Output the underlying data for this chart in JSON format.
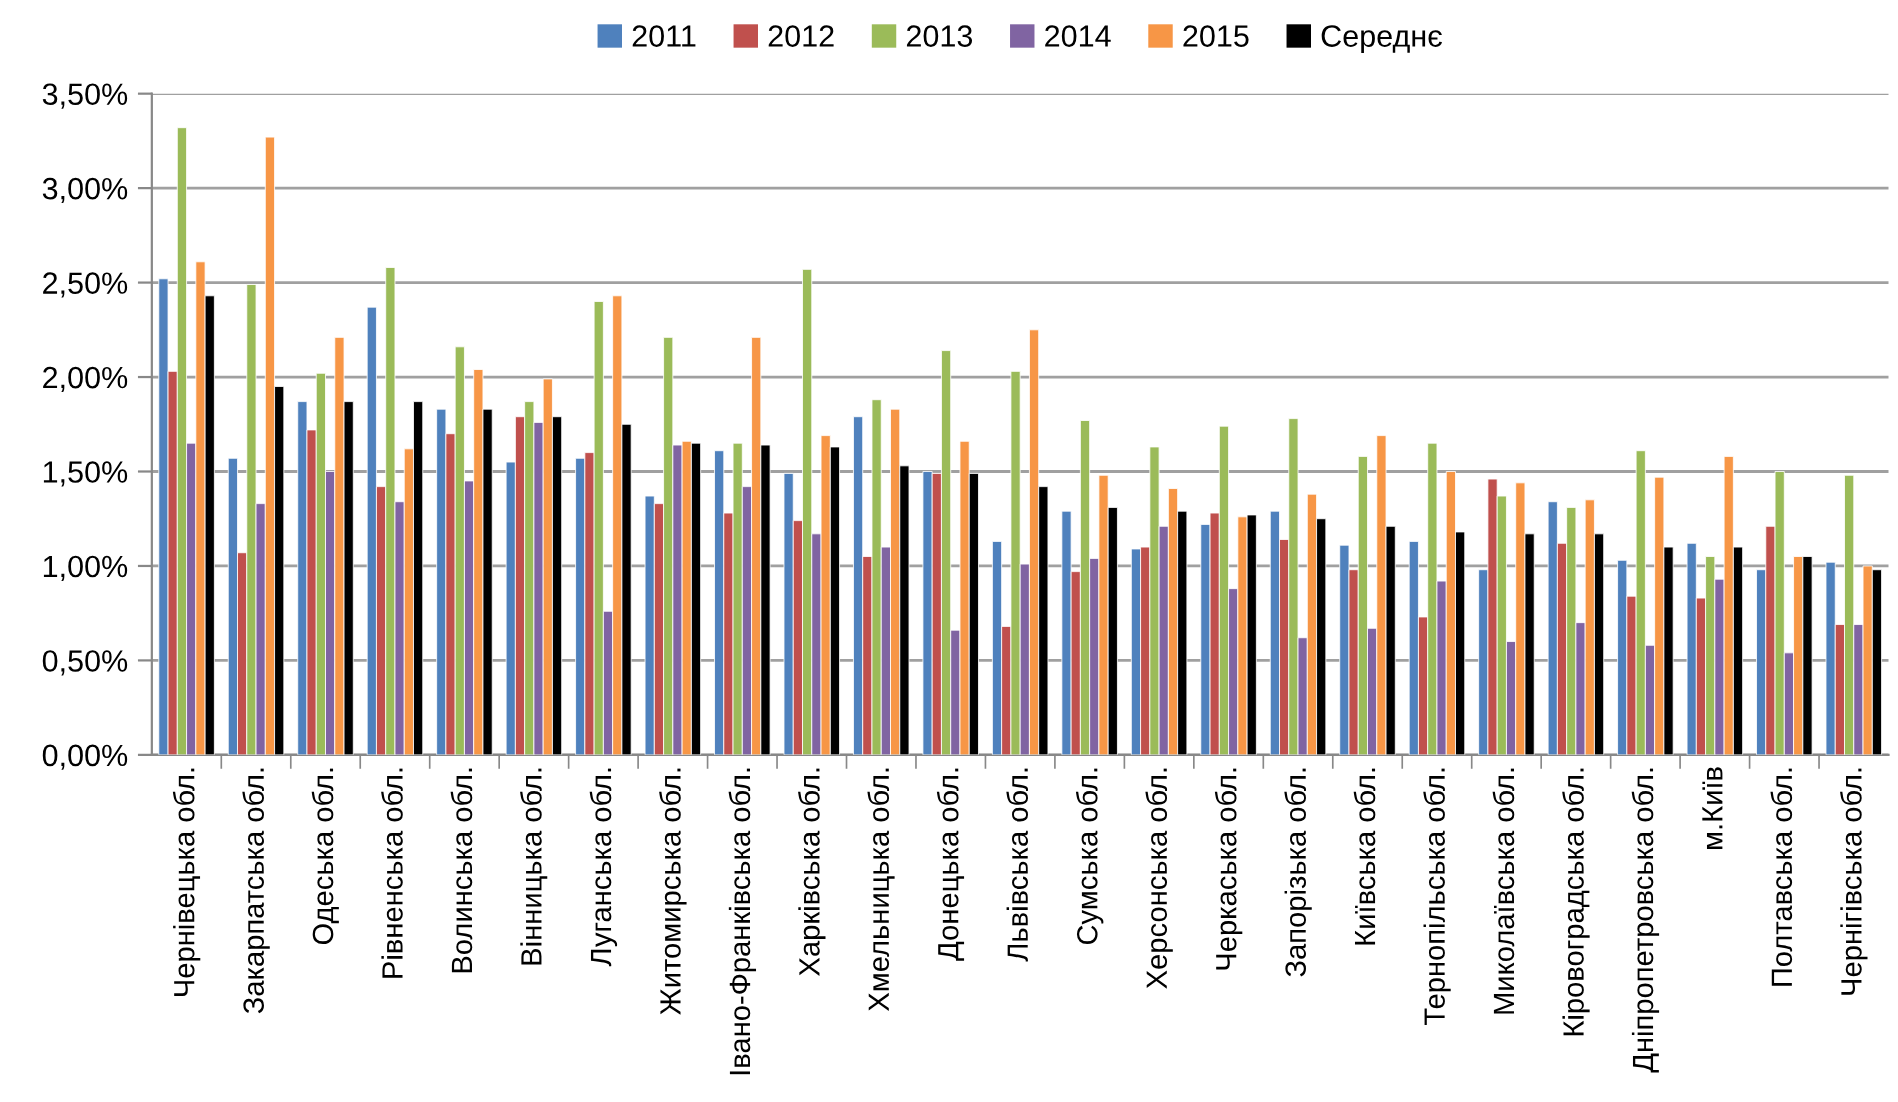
{
  "chart_data": {
    "type": "bar",
    "categories": [
      "Чернівецька обл.",
      "Закарпатська обл.",
      "Одеська обл.",
      "Рівненська обл.",
      "Волинська обл.",
      "Вінницька обл.",
      "Луганська обл.",
      "Житомирська обл.",
      "Івано-Франківська обл.",
      "Харківська обл.",
      "Хмельницька обл.",
      "Донецька обл.",
      "Львівська обл.",
      "Сумська обл.",
      "Херсонська обл.",
      "Черкаська обл.",
      "Запорізька обл.",
      "Київська обл.",
      "Тернопільська обл.",
      "Миколаївська обл.",
      "Кіровоградська обл.",
      "Дніпропетровська обл.",
      "м.Київ",
      "Полтавська обл.",
      "Чернігівська обл."
    ],
    "series": [
      {
        "name": "2011",
        "color": "#4f81bd",
        "values": [
          2.52,
          1.57,
          1.87,
          2.37,
          1.83,
          1.55,
          1.57,
          1.37,
          1.61,
          1.49,
          1.79,
          1.5,
          1.13,
          1.29,
          1.09,
          1.22,
          1.29,
          1.11,
          1.13,
          0.98,
          1.34,
          1.03,
          1.12,
          0.98,
          1.02
        ]
      },
      {
        "name": "2012",
        "color": "#c0504d",
        "values": [
          2.03,
          1.07,
          1.72,
          1.42,
          1.7,
          1.79,
          1.6,
          1.33,
          1.28,
          1.24,
          1.05,
          1.49,
          0.68,
          0.97,
          1.1,
          1.28,
          1.14,
          0.98,
          0.73,
          1.46,
          1.12,
          0.84,
          0.83,
          1.21,
          0.69
        ]
      },
      {
        "name": "2013",
        "color": "#9bbb59",
        "values": [
          3.32,
          2.49,
          2.02,
          2.58,
          2.16,
          1.87,
          2.4,
          2.21,
          1.65,
          2.57,
          1.88,
          2.14,
          2.03,
          1.77,
          1.63,
          1.74,
          1.78,
          1.58,
          1.65,
          1.37,
          1.31,
          1.61,
          1.05,
          1.5,
          1.48
        ]
      },
      {
        "name": "2014",
        "color": "#8064a2",
        "values": [
          1.65,
          1.33,
          1.5,
          1.34,
          1.45,
          1.76,
          0.76,
          1.64,
          1.42,
          1.17,
          1.1,
          0.66,
          1.01,
          1.04,
          1.21,
          0.88,
          0.62,
          0.67,
          0.92,
          0.6,
          0.7,
          0.58,
          0.93,
          0.54,
          0.69
        ]
      },
      {
        "name": "2015",
        "color": "#f79646",
        "values": [
          2.61,
          3.27,
          2.21,
          1.62,
          2.04,
          1.99,
          2.43,
          1.66,
          2.21,
          1.69,
          1.83,
          1.66,
          2.25,
          1.48,
          1.41,
          1.26,
          1.38,
          1.69,
          1.5,
          1.44,
          1.35,
          1.47,
          1.58,
          1.05,
          1.0
        ]
      },
      {
        "name": "Середнє",
        "color": "#000000",
        "values": [
          2.43,
          1.95,
          1.87,
          1.87,
          1.83,
          1.79,
          1.75,
          1.65,
          1.64,
          1.63,
          1.53,
          1.49,
          1.42,
          1.31,
          1.29,
          1.27,
          1.25,
          1.21,
          1.18,
          1.17,
          1.17,
          1.1,
          1.1,
          1.05,
          0.98
        ]
      }
    ],
    "ylim": [
      0,
      3.5
    ],
    "yticks": [
      {
        "value": 0,
        "label": "0,00%"
      },
      {
        "value": 0.5,
        "label": "0,50%"
      },
      {
        "value": 1,
        "label": "1,00%"
      },
      {
        "value": 1.5,
        "label": "1,50%"
      },
      {
        "value": 2,
        "label": "2,00%"
      },
      {
        "value": 2.5,
        "label": "2,50%"
      },
      {
        "value": 3,
        "label": "3,00%"
      },
      {
        "value": 3.5,
        "label": "3,50%"
      }
    ],
    "grid": "y",
    "legend": "top"
  }
}
